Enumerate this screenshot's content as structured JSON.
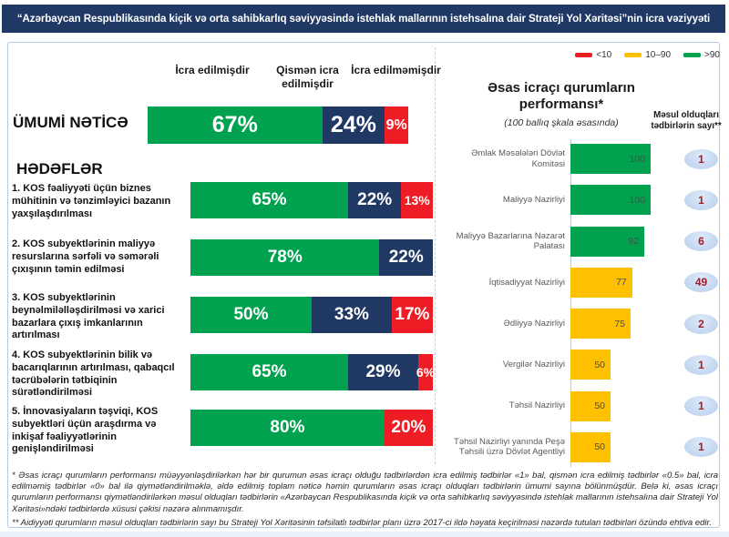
{
  "header": {
    "title": "“Azərbaycan Respublikasında kiçik və orta sahibkarlıq səviyyəsində istehlak mallarının istehsalına dair Strateji Yol Xəritəsi”nin icra vəziyyəti"
  },
  "left_chart": {
    "columns": [
      "İcra edilmişdir",
      "Qismən icra edilmişdir",
      "İcra edilməmişdir"
    ],
    "overall_label": "ÜMUMİ NƏTİCƏ",
    "goals_heading": "HƏDƏFLƏR",
    "overall": {
      "done": {
        "v": 67,
        "label": "67%"
      },
      "partial": {
        "v": 24,
        "label": "24%"
      },
      "not_done": {
        "v": 9,
        "label": "9%"
      }
    },
    "goals": [
      {
        "label": "1. KOS fəaliyyəti üçün biznes mühitinin və tənzimləyici bazanın yaxşılaşdırılması",
        "done": {
          "v": 65,
          "label": "65%"
        },
        "partial": {
          "v": 22,
          "label": "22%"
        },
        "not_done": {
          "v": 13,
          "label": "13%"
        }
      },
      {
        "label": "2. KOS subyektlərinin maliyyə resurslarına sərfəli və səmərəli çıxışının təmin edilməsi",
        "done": {
          "v": 78,
          "label": "78%"
        },
        "partial": {
          "v": 22,
          "label": "22%"
        },
        "not_done": {
          "v": 0,
          "label": ""
        }
      },
      {
        "label": "3. KOS subyektlərinin beynəlmiləlləşdirilməsi və xarici bazarlara çıxış imkanlarının artırılması",
        "done": {
          "v": 50,
          "label": "50%"
        },
        "partial": {
          "v": 33,
          "label": "33%"
        },
        "not_done": {
          "v": 17,
          "label": "17%"
        }
      },
      {
        "label": "4. KOS subyektlərinin bilik və bacarıqlarının artırılması, qabaqcıl təcrübələrin tətbiqinin sürətləndirilməsi",
        "done": {
          "v": 65,
          "label": "65%"
        },
        "partial": {
          "v": 29,
          "label": "29%"
        },
        "not_done": {
          "v": 6,
          "label": "6%"
        }
      },
      {
        "label": "5. İnnovasiyaların təşviqi, KOS subyektləri üçün araşdırma və inkişaf fəaliyyətlərinin genişləndirilməsi",
        "done": {
          "v": 80,
          "label": "80%"
        },
        "partial": {
          "v": 0,
          "label": ""
        },
        "not_done": {
          "v": 20,
          "label": "20%"
        }
      }
    ]
  },
  "right_chart": {
    "legend": [
      {
        "label": "<10",
        "color": "#EE1C25"
      },
      {
        "label": "10–90",
        "color": "#FFC000"
      },
      {
        "label": ">90",
        "color": "#00A14F"
      }
    ],
    "title": "Əsas icraçı qurumların performansı*",
    "subtitle": "(100 ballıq şkala əsasında)",
    "count_header": "Məsul olduqları tədbirlərin sayı**",
    "institutions": [
      {
        "name": "Əmlak Məsələləri Dövlət Komitəsi",
        "score": 100,
        "score_label": "100",
        "count": "1",
        "color": "green"
      },
      {
        "name": "Maliyyə Nazirliyi",
        "score": 100,
        "score_label": "100",
        "count": "1",
        "color": "green"
      },
      {
        "name": "Maliyyə Bazarlarına Nəzarət Palatası",
        "score": 92,
        "score_label": "92",
        "count": "6",
        "color": "green"
      },
      {
        "name": "İqtisadiyyat Nazirliyi",
        "score": 77,
        "score_label": "77",
        "count": "49",
        "color": "yellow"
      },
      {
        "name": "Ədliyyə Nazirliyi",
        "score": 75,
        "score_label": "75",
        "count": "2",
        "color": "yellow"
      },
      {
        "name": "Vergilər Nazirliyi",
        "score": 50,
        "score_label": "50",
        "count": "1",
        "color": "yellow"
      },
      {
        "name": "Təhsil Nazirliyi",
        "score": 50,
        "score_label": "50",
        "count": "1",
        "color": "yellow"
      },
      {
        "name": "Təhsil Nazirliyi yanında Peşə Təhsili üzrə Dövlət Agentliyi",
        "score": 50,
        "score_label": "50",
        "count": "1",
        "color": "yellow"
      }
    ]
  },
  "footnotes": {
    "fn1": "*  Əsas icraçı qurumların performansı müəyyənləşdirilərkən hər bir qurumun əsas icraçı olduğu tədbirlərdən icra edilmiş tədbirlər «1» bal, qismən icra edilmiş tədbirlər «0.5» bal, icra edilməmiş tədbirlər «0» bal ilə qiymətləndirilməklə, əldə edilmiş toplam nəticə həmin qurumların əsas icraçı olduqları tədbirlərin ümumi sayına bölünmüşdür. Belə ki, əsas icraçı qurumların performansı qiymətləndirilərkən məsul olduqları tədbirlərin «Azərbaycan Respublikasında kiçik və orta sahibkarlıq səviyyəsində istehlak mallarının istehsalına dair Strateji Yol Xəritəsi»ndəki tədbirlərdə xüsusi çəkisi nəzərə alınmamışdır.",
    "fn2": "** Aidiyyəti qurumların məsul olduqları tədbirlərin sayı bu Strateji Yol Xəritəsinin təfsilatlı tədbirlər planı üzrə 2017-ci ildə həyata keçirilməsi nəzərdə tutulan tədbirləri özündə ehtiva edir."
  },
  "colors": {
    "header_bg": "#1F3864",
    "done_green": "#00A14F",
    "partial_navy": "#1F3864",
    "not_done_red": "#EE1C25",
    "score_mid_yellow": "#FFC000",
    "badge_bg": "#C5D9F1",
    "badge_text": "#A61C28"
  },
  "chart_data": [
    {
      "type": "bar",
      "subtype": "horizontal-stacked",
      "title": "“Azərbaycan Respublikasında kiçik və orta sahibkarlıq səviyyəsində istehlak mallarının istehsalına dair Strateji Yol Xəritəsi”nin icra vəziyyəti",
      "categories": [
        "ÜMUMİ NƏTİCƏ",
        "1. KOS fəaliyyəti üçün biznes mühitinin və tənzimləyici bazanın yaxşılaşdırılması",
        "2. KOS subyektlərinin maliyyə resurslarına sərfəli və səmərəli çıxışının təmin edilməsi",
        "3. KOS subyektlərinin beynəlmiləlləşdirilməsi və xarici bazarlara çıxış imkanlarının artırılması",
        "4. KOS subyektlərinin bilik və bacarıqlarının artırılması, qabaqcıl təcrübələrin tətbiqinin sürətləndirilməsi",
        "5. İnnovasiyaların təşviqi, KOS subyektləri üçün araşdırma və inkişaf fəaliyyətlərinin genişləndirilməsi"
      ],
      "series": [
        {
          "name": "İcra edilmişdir",
          "color": "#00A14F",
          "values": [
            67,
            65,
            78,
            50,
            65,
            80
          ]
        },
        {
          "name": "Qismən icra edilmişdir",
          "color": "#1F3864",
          "values": [
            24,
            22,
            22,
            33,
            29,
            0
          ]
        },
        {
          "name": "İcra edilməmişdir",
          "color": "#EE1C25",
          "values": [
            9,
            13,
            0,
            17,
            6,
            20
          ]
        }
      ],
      "unit": "%",
      "xlim": [
        0,
        100
      ],
      "grid": false,
      "legend_position": "top-as-column-headers"
    },
    {
      "type": "bar",
      "subtype": "horizontal",
      "title": "Əsas icraçı qurumların performansı*",
      "subtitle": "(100 ballıq şkala əsasında)",
      "categories": [
        "Əmlak Məsələləri Dövlət Komitəsi",
        "Maliyyə Nazirliyi",
        "Maliyyə Bazarlarına Nəzarət Palatası",
        "İqtisadiyyat Nazirliyi",
        "Ədliyyə Nazirliyi",
        "Vergilər Nazirliyi",
        "Təhsil Nazirliyi",
        "Təhsil Nazirliyi yanında Peşə Təhsili üzrə Dövlət Agentliyi"
      ],
      "values": [
        100,
        100,
        92,
        77,
        75,
        50,
        50,
        50
      ],
      "bar_colors": [
        "#00A14F",
        "#00A14F",
        "#00A14F",
        "#FFC000",
        "#FFC000",
        "#FFC000",
        "#FFC000",
        "#FFC000"
      ],
      "responsible_measure_counts": [
        1,
        1,
        6,
        49,
        2,
        1,
        1,
        1
      ],
      "xlim": [
        0,
        100
      ],
      "grid": false,
      "legend": [
        {
          "label": "<10",
          "color": "#EE1C25"
        },
        {
          "label": "10–90",
          "color": "#FFC000"
        },
        {
          "label": ">90",
          "color": "#00A14F"
        }
      ],
      "legend_position": "top-right"
    }
  ]
}
